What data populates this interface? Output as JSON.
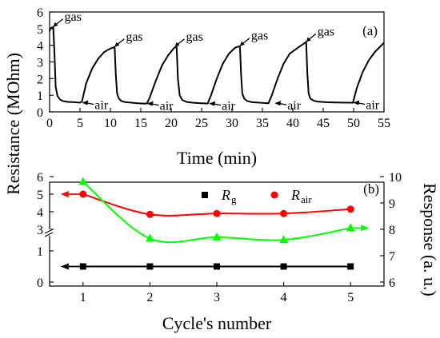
{
  "figure": {
    "shared_ylabel": "Resistance (MOhm)",
    "right_ylabel": "Response (a. u.)"
  },
  "chart_data": [
    {
      "panel_label": "(a)",
      "type": "line",
      "xlabel": "Time (min)",
      "xlim": [
        0,
        55
      ],
      "ylim": [
        0,
        6
      ],
      "xticks": [
        "0",
        "5",
        "10",
        "15",
        "20",
        "25",
        "30",
        "35",
        "40",
        "45",
        "50",
        "55"
      ],
      "yticks": [
        "0",
        "1",
        "2",
        "3",
        "4",
        "5",
        "6"
      ],
      "color": "#000000",
      "series": [
        {
          "x": [
            0,
            0.1,
            0.3,
            0.6,
            0.8,
            1.0,
            1.3,
            1.7,
            2.2,
            3.0,
            4.0,
            5.0,
            5.3,
            5.5,
            6,
            7,
            8,
            9,
            10,
            10.7,
            10.9,
            11.1,
            11.4,
            11.8,
            12.5,
            13.5,
            14.5,
            15.5,
            16.0,
            16.5,
            17.5,
            18.5,
            19.5,
            20.5,
            20.9,
            21.1,
            21.4,
            21.8,
            22.5,
            23.5,
            25,
            26.0,
            26.5,
            27.5,
            28.5,
            29.5,
            30.5,
            31.3,
            31.5,
            31.7,
            32.0,
            32.5,
            33.3,
            34.5,
            36.0,
            36.5,
            37.5,
            38.5,
            39.5,
            41,
            42.2,
            42.4,
            42.6,
            42.9,
            43.4,
            44,
            45.5,
            47,
            49,
            49.9,
            50.5,
            51.5,
            52.5,
            53.5,
            55
          ],
          "y": [
            4.85,
            5.0,
            5.05,
            5.1,
            3.5,
            1.5,
            0.95,
            0.75,
            0.65,
            0.6,
            0.58,
            0.55,
            0.62,
            0.9,
            1.7,
            2.6,
            3.2,
            3.6,
            3.8,
            3.9,
            2.2,
            1.1,
            0.8,
            0.65,
            0.58,
            0.55,
            0.52,
            0.5,
            0.5,
            0.9,
            1.9,
            2.8,
            3.4,
            3.85,
            3.9,
            2.0,
            1.0,
            0.72,
            0.6,
            0.55,
            0.52,
            0.5,
            0.95,
            2.0,
            2.9,
            3.5,
            3.85,
            3.95,
            2.2,
            1.1,
            0.8,
            0.65,
            0.58,
            0.55,
            0.52,
            0.95,
            2.0,
            2.9,
            3.5,
            3.9,
            4.2,
            2.3,
            1.1,
            0.8,
            0.68,
            0.62,
            0.58,
            0.56,
            0.55,
            0.55,
            1.4,
            2.4,
            3.1,
            3.6,
            4.15
          ]
        }
      ],
      "annotations": [
        {
          "text": "gas",
          "x": 0.6,
          "y": 5.1
        },
        {
          "text": "gas",
          "x": 10.7,
          "y": 3.9
        },
        {
          "text": "gas",
          "x": 20.6,
          "y": 3.9
        },
        {
          "text": "gas",
          "x": 31.3,
          "y": 3.95
        },
        {
          "text": "gas",
          "x": 42.2,
          "y": 4.2
        },
        {
          "text": "air",
          "x": 5.3,
          "y": 0.55
        },
        {
          "text": "air",
          "x": 16.0,
          "y": 0.5
        },
        {
          "text": "air",
          "x": 26.2,
          "y": 0.5
        },
        {
          "text": "air",
          "x": 37.0,
          "y": 0.52
        },
        {
          "text": "air",
          "x": 49.9,
          "y": 0.55
        }
      ]
    },
    {
      "panel_label": "(b)",
      "type": "line",
      "xlabel": "Cycle's number",
      "xlim": [
        0.5,
        5.5
      ],
      "xticks": [
        1,
        2,
        3,
        4,
        5
      ],
      "yticks_left": [
        "0",
        "1",
        "3",
        "4",
        "5",
        "6"
      ],
      "yticks_right": [
        "6",
        "7",
        "8",
        "9",
        "10"
      ],
      "right_ylim": [
        6,
        10
      ],
      "y_break": true,
      "legend": {
        "position": "top-right",
        "entries": [
          {
            "label": "R",
            "sub": "g",
            "color": "#000000",
            "marker": "square"
          },
          {
            "label": "R",
            "sub": "air",
            "color": "#ff0000",
            "marker": "circle"
          }
        ]
      },
      "series": [
        {
          "name": "Rg",
          "axis": "left",
          "x": [
            1,
            2,
            3,
            4,
            5
          ],
          "y": [
            0.5,
            0.5,
            0.5,
            0.5,
            0.5
          ],
          "color": "#000000",
          "marker": "square",
          "arrow": "left"
        },
        {
          "name": "Rair",
          "axis": "left",
          "x": [
            1,
            2,
            3,
            4,
            5
          ],
          "y": [
            5.0,
            3.85,
            3.9,
            3.9,
            4.15
          ],
          "color": "#ff0000",
          "marker": "circle",
          "arrow": "left"
        },
        {
          "name": "Response",
          "axis": "right",
          "x": [
            1,
            2,
            3,
            4,
            5
          ],
          "y": [
            9.8,
            7.65,
            7.7,
            7.6,
            8.05
          ],
          "color": "#00ff00",
          "marker": "triangle",
          "arrow": "right"
        }
      ]
    }
  ]
}
